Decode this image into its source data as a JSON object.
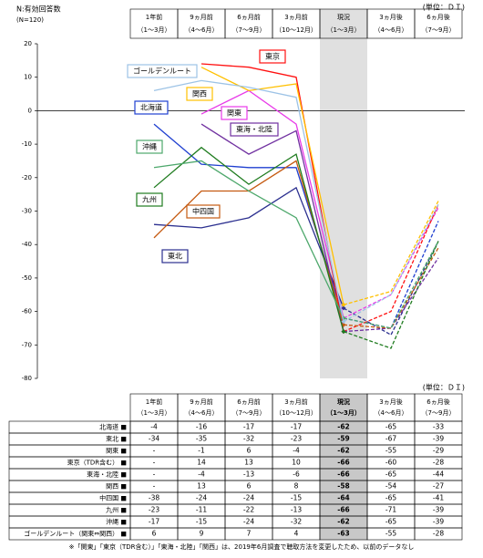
{
  "chart_data": {
    "type": "line",
    "note_n": "N:有効回答数",
    "n_value": "(N=120)",
    "unit": "(単位：ＤＩ)",
    "categories": [
      [
        "1年前",
        "（1～3月）"
      ],
      [
        "9ヵ月前",
        "（4～6月）"
      ],
      [
        "6ヵ月前",
        "（7～9月）"
      ],
      [
        "3ヵ月前",
        "（10～12月）"
      ],
      [
        "現況",
        "（1～3月）"
      ],
      [
        "3ヵ月後",
        "（4～6月）"
      ],
      [
        "6ヵ月後",
        "（7～9月）"
      ]
    ],
    "ylim": [
      -80,
      20
    ],
    "yticks": [
      20,
      10,
      0,
      -10,
      -20,
      -30,
      -40,
      -50,
      -60,
      -70,
      -80
    ],
    "current_index": 4,
    "series": [
      {
        "name": "北海道",
        "color": "#1f3fd0",
        "values": [
          -4,
          -16,
          -17,
          -17,
          -62,
          -65,
          -33
        ]
      },
      {
        "name": "東北",
        "color": "#2b2f8f",
        "values": [
          -34,
          -35,
          -32,
          -23,
          -59,
          -67,
          -39
        ]
      },
      {
        "name": "関東",
        "color": "#e83ae8",
        "values": [
          null,
          -1,
          6,
          -4,
          -62,
          -55,
          -29
        ]
      },
      {
        "name": "東京",
        "color": "#ff1010",
        "values": [
          null,
          14,
          13,
          10,
          -66,
          -60,
          -28
        ]
      },
      {
        "name": "東海・北陸",
        "color": "#7030a0",
        "values": [
          null,
          -4,
          -13,
          -6,
          -66,
          -65,
          -44
        ]
      },
      {
        "name": "関西",
        "color": "#ffc000",
        "values": [
          null,
          13,
          6,
          8,
          -58,
          -54,
          -27
        ]
      },
      {
        "name": "中四国",
        "color": "#c55a11",
        "values": [
          -38,
          -24,
          -24,
          -15,
          -64,
          -65,
          -41
        ]
      },
      {
        "name": "九州",
        "color": "#1e7b1e",
        "values": [
          -23,
          -11,
          -22,
          -13,
          -66,
          -71,
          -39
        ]
      },
      {
        "name": "沖縄",
        "color": "#4ea86c",
        "values": [
          -17,
          -15,
          -24,
          -32,
          -62,
          -65,
          -39
        ]
      },
      {
        "name": "ゴールデンルート",
        "color": "#9dc3e6",
        "values": [
          6,
          9,
          7,
          4,
          -63,
          -55,
          -28
        ]
      }
    ]
  },
  "table": {
    "unit": "(単位：ＤＩ)",
    "rows": [
      {
        "label": "北海道 ■",
        "cells": [
          "-4",
          "-16",
          "-17",
          "-17",
          "-62",
          "-65",
          "-33"
        ]
      },
      {
        "label": "東北 ■",
        "cells": [
          "-34",
          "-35",
          "-32",
          "-23",
          "-59",
          "-67",
          "-39"
        ]
      },
      {
        "label": "関東 ■",
        "cells": [
          "-",
          "-1",
          "6",
          "-4",
          "-62",
          "-55",
          "-29"
        ]
      },
      {
        "label": "東京（TDR含む） ■",
        "cells": [
          "-",
          "14",
          "13",
          "10",
          "-66",
          "-60",
          "-28"
        ]
      },
      {
        "label": "東海・北陸 ■",
        "cells": [
          "-",
          "-4",
          "-13",
          "-6",
          "-66",
          "-65",
          "-44"
        ]
      },
      {
        "label": "関西 ■",
        "cells": [
          "-",
          "13",
          "6",
          "8",
          "-58",
          "-54",
          "-27"
        ]
      },
      {
        "label": "中四国 ■",
        "cells": [
          "-38",
          "-24",
          "-24",
          "-15",
          "-64",
          "-65",
          "-41"
        ]
      },
      {
        "label": "九州 ■",
        "cells": [
          "-23",
          "-11",
          "-22",
          "-13",
          "-66",
          "-71",
          "-39"
        ]
      },
      {
        "label": "沖縄 ■",
        "cells": [
          "-17",
          "-15",
          "-24",
          "-32",
          "-62",
          "-65",
          "-39"
        ]
      },
      {
        "label": "ゴールデンルート（関東⇔関西） ■",
        "cells": [
          "6",
          "9",
          "7",
          "4",
          "-63",
          "-55",
          "-28"
        ]
      }
    ]
  },
  "footnote": "※「関東」「東京（TDR含む）」「東海・北陸」「関西」は、2019年6月調査で聴取方法を変更したため、以前のデータなし"
}
